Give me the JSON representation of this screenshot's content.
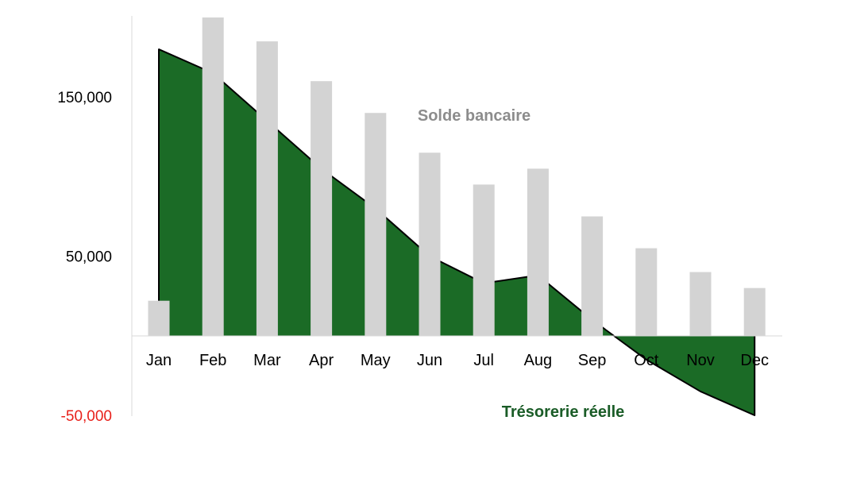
{
  "chart_data": {
    "type": "bar",
    "categories": [
      "Jan",
      "Feb",
      "Mar",
      "Apr",
      "May",
      "Jun",
      "Jul",
      "Aug",
      "Sep",
      "Oct",
      "Nov",
      "Dec"
    ],
    "series": [
      {
        "name": "Solde bancaire",
        "kind": "bar",
        "color": "#d3d3d3",
        "values": [
          22000,
          200000,
          185000,
          160000,
          140000,
          115000,
          95000,
          105000,
          75000,
          55000,
          40000,
          30000
        ]
      },
      {
        "name": "Trésorerie réelle",
        "kind": "area",
        "color": "#1b6b26",
        "values": [
          180000,
          165000,
          135000,
          105000,
          80000,
          50000,
          33000,
          38000,
          10000,
          -15000,
          -35000,
          -50000
        ]
      }
    ],
    "ylim": [
      -50000,
      200000
    ],
    "yticks": [
      {
        "value": 150000,
        "label": "150,000"
      },
      {
        "value": 50000,
        "label": "50,000"
      },
      {
        "value": -50000,
        "label": "-50,000"
      }
    ],
    "negative_tick_color": "#e8211b",
    "annotations": {
      "bars": "Solde bancaire",
      "area": "Trésorerie réelle"
    },
    "grid": false,
    "legend": "none"
  }
}
